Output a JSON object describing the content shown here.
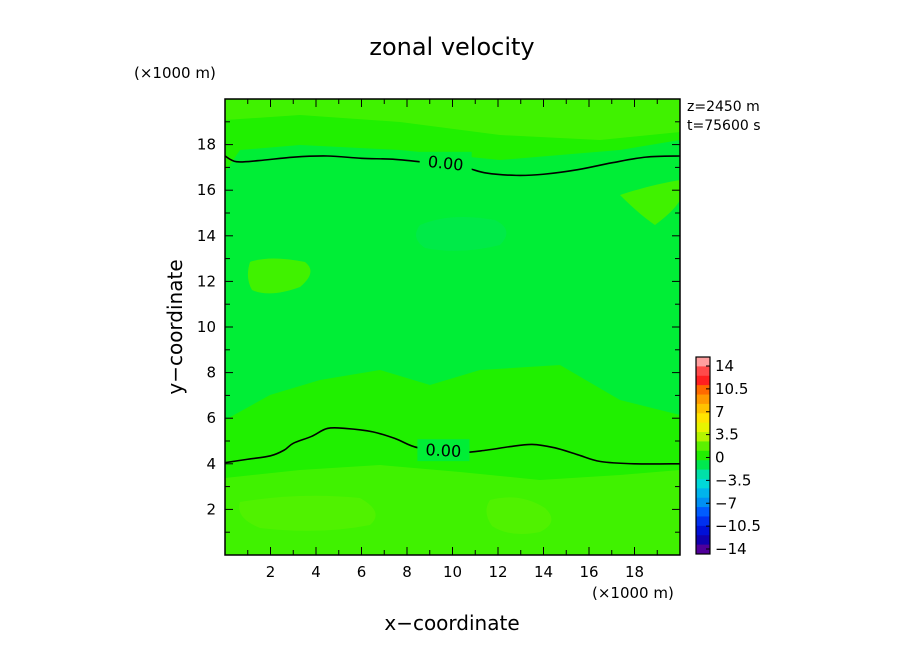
{
  "chart_data": {
    "type": "contour",
    "title": "zonal velocity",
    "xlabel": "x−coordinate",
    "ylabel": "y−coordinate",
    "x_unit": "(×1000 m)",
    "y_unit": "(×1000 m)",
    "xlim": [
      0,
      20
    ],
    "ylim": [
      0,
      20
    ],
    "x_ticks": [
      2,
      4,
      6,
      8,
      10,
      12,
      14,
      16,
      18
    ],
    "y_ticks": [
      2,
      4,
      6,
      8,
      10,
      12,
      14,
      16,
      18
    ],
    "annotations": [
      "z=2450 m",
      "t=75600 s"
    ],
    "contour_lines": [
      {
        "level": 0,
        "label": "0.00",
        "label_at": [
          9.7,
          17.2
        ],
        "points": [
          [
            0,
            17.5
          ],
          [
            0.5,
            17.25
          ],
          [
            1.5,
            17.3
          ],
          [
            3,
            17.45
          ],
          [
            4.5,
            17.5
          ],
          [
            6,
            17.4
          ],
          [
            7.5,
            17.35
          ],
          [
            9,
            17.2
          ],
          [
            10.5,
            17.0
          ],
          [
            11.5,
            16.75
          ],
          [
            12.8,
            16.65
          ],
          [
            14,
            16.7
          ],
          [
            15.5,
            16.9
          ],
          [
            17,
            17.2
          ],
          [
            18.5,
            17.45
          ],
          [
            20,
            17.5
          ]
        ]
      },
      {
        "level": 0,
        "label": "0.00",
        "label_at": [
          9.6,
          4.6
        ],
        "points": [
          [
            0,
            4.05
          ],
          [
            1,
            4.2
          ],
          [
            2,
            4.35
          ],
          [
            2.6,
            4.6
          ],
          [
            3,
            4.9
          ],
          [
            3.8,
            5.2
          ],
          [
            4.5,
            5.55
          ],
          [
            5.3,
            5.55
          ],
          [
            6.5,
            5.4
          ],
          [
            7.5,
            5.1
          ],
          [
            8.5,
            4.7
          ],
          [
            10.3,
            4.5
          ],
          [
            11.5,
            4.6
          ],
          [
            12.5,
            4.75
          ],
          [
            13.5,
            4.85
          ],
          [
            14.5,
            4.7
          ],
          [
            15.5,
            4.4
          ],
          [
            16.5,
            4.1
          ],
          [
            18,
            4.0
          ],
          [
            20,
            4.0
          ]
        ]
      }
    ],
    "colorbar": {
      "labels": [
        "14",
        "10.5",
        "7",
        "3.5",
        "0",
        "−3.5",
        "−7",
        "−10.5",
        "−14"
      ],
      "colors_top_to_bottom": [
        "#ff9f9f",
        "#ff4a4a",
        "#ff2020",
        "#ff6a00",
        "#ff9a00",
        "#ffc200",
        "#ffe400",
        "#e8f400",
        "#b4f400",
        "#5cf000",
        "#22ee00",
        "#00e84e",
        "#00e0a8",
        "#00d8d8",
        "#00b4ec",
        "#0090f4",
        "#005cff",
        "#0030f0",
        "#0010d8",
        "#1000b0",
        "#50009a"
      ]
    },
    "fills": {
      "background": "#20f000",
      "slightly_negative": "#00ee36",
      "slightly_positive": "#40f200"
    }
  }
}
